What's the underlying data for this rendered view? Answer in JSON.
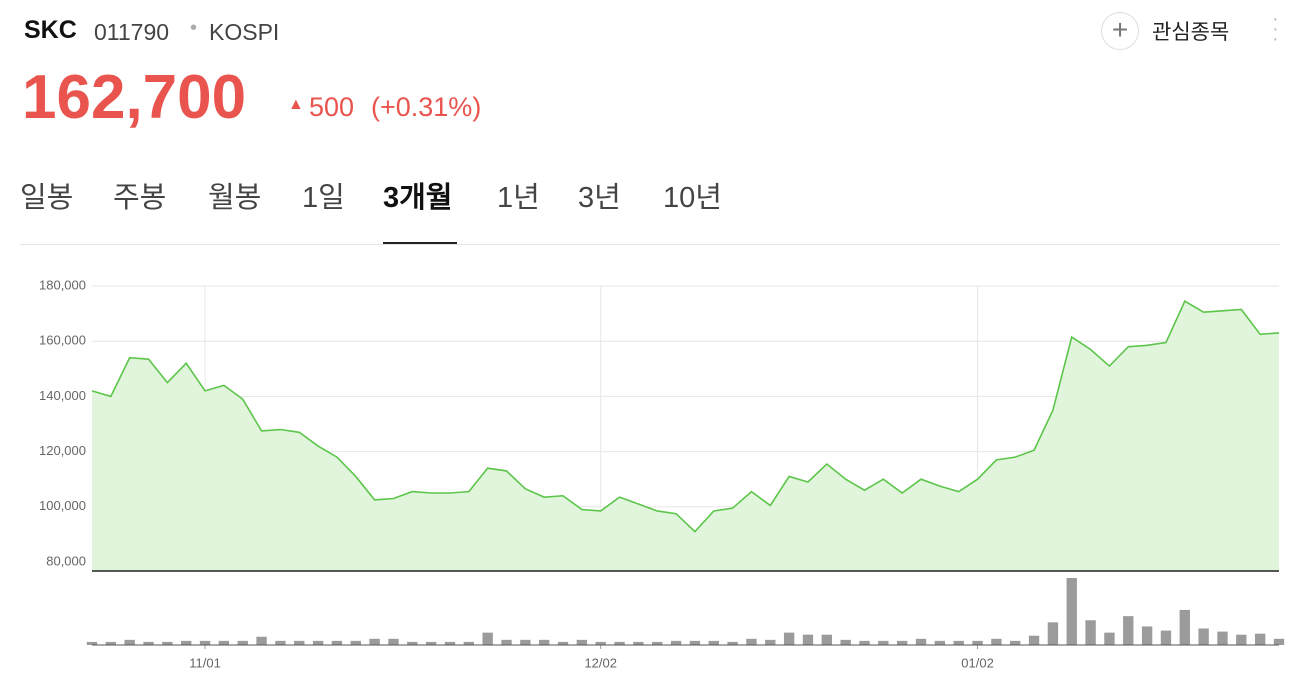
{
  "header": {
    "name": "SKC",
    "code": "011790",
    "market": "KOSPI",
    "price": "162,700",
    "change": "500",
    "change_pct": "(+0.31%)",
    "watch_button": "관심종목"
  },
  "tabs": {
    "items": [
      "일봉",
      "주봉",
      "월봉",
      "1일",
      "3개월",
      "1년",
      "3년",
      "10년"
    ],
    "active": 4
  },
  "chart_data": {
    "type": "line",
    "color": "#5cc54a",
    "fill": "#e0f5dc",
    "grid": true,
    "categories": [
      null,
      null,
      null,
      null,
      null,
      null,
      "11/01",
      null,
      null,
      null,
      null,
      null,
      null,
      null,
      null,
      null,
      null,
      null,
      null,
      null,
      null,
      null,
      null,
      null,
      null,
      null,
      null,
      "12/02",
      null,
      null,
      null,
      null,
      null,
      null,
      null,
      null,
      null,
      null,
      null,
      null,
      null,
      null,
      null,
      null,
      null,
      null,
      null,
      "01/02",
      null,
      null,
      null,
      null,
      null,
      null,
      null,
      null,
      null,
      null,
      null,
      null,
      null,
      null,
      null,
      null
    ],
    "values": [
      142000,
      140000,
      154000,
      153500,
      145000,
      152000,
      142000,
      144000,
      139000,
      127500,
      128000,
      127000,
      122000,
      118000,
      111000,
      102500,
      103000,
      105500,
      105000,
      105000,
      105500,
      114000,
      113000,
      106500,
      103500,
      104000,
      99000,
      98500,
      103500,
      101000,
      98500,
      97500,
      91000,
      98500,
      99500,
      105500,
      100500,
      111000,
      109000,
      115500,
      110000,
      106000,
      110000,
      105000,
      110000,
      107500,
      105500,
      110000,
      117000,
      118000,
      120500,
      135000,
      161500,
      157000,
      151000,
      158000,
      158500,
      159500,
      174500,
      170500,
      171000,
      171500,
      162500,
      163000
    ],
    "volume": [
      3,
      3,
      5,
      3,
      3,
      4,
      4,
      4,
      4,
      8,
      4,
      4,
      4,
      4,
      4,
      6,
      6,
      3,
      3,
      3,
      3,
      12,
      5,
      5,
      5,
      3,
      5,
      3,
      3,
      3,
      3,
      4,
      4,
      4,
      3,
      6,
      5,
      12,
      10,
      10,
      5,
      4,
      4,
      4,
      6,
      4,
      4,
      4,
      6,
      4,
      9,
      22,
      65,
      24,
      12,
      28,
      18,
      14,
      34,
      16,
      13,
      10,
      11,
      6
    ],
    "volume_color": "#9b9b9b",
    "ylim": [
      80000,
      180000
    ],
    "yticks": [
      {
        "value": 80000,
        "label": "80,000"
      },
      {
        "value": 100000,
        "label": "100,000"
      },
      {
        "value": 120000,
        "label": "120,000"
      },
      {
        "value": 140000,
        "label": "140,000"
      },
      {
        "value": 160000,
        "label": "160,000"
      },
      {
        "value": 180000,
        "label": "180,000"
      }
    ]
  }
}
